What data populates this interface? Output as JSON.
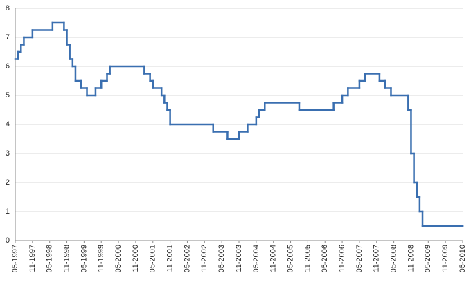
{
  "chart_data": {
    "type": "step",
    "x": [
      "05-1997",
      "06-1997",
      "07-1997",
      "08-1997",
      "11-1997",
      "06-1998",
      "10-1998",
      "11-1998",
      "12-1998",
      "01-1999",
      "02-1999",
      "04-1999",
      "06-1999",
      "09-1999",
      "11-1999",
      "01-2000",
      "02-2000",
      "02-2001",
      "04-2001",
      "05-2001",
      "08-2001",
      "09-2001",
      "10-2001",
      "11-2001",
      "02-2003",
      "07-2003",
      "11-2003",
      "02-2004",
      "05-2004",
      "06-2004",
      "08-2004",
      "08-2005",
      "08-2006",
      "11-2006",
      "01-2007",
      "05-2007",
      "07-2007",
      "12-2007",
      "02-2008",
      "04-2008",
      "10-2008",
      "11-2008",
      "12-2008",
      "01-2009",
      "02-2009",
      "03-2009",
      "05-2010"
    ],
    "values": [
      6.25,
      6.5,
      6.75,
      7,
      7.25,
      7.5,
      7.25,
      6.75,
      6.25,
      6,
      5.5,
      5.25,
      5,
      5.25,
      5.5,
      5.75,
      6,
      5.75,
      5.5,
      5.25,
      5,
      4.75,
      4.5,
      4,
      3.75,
      3.5,
      3.75,
      4,
      4.25,
      4.5,
      4.75,
      4.5,
      4.75,
      5,
      5.25,
      5.5,
      5.75,
      5.5,
      5.25,
      5,
      4.5,
      3,
      2,
      1.5,
      1,
      0.5,
      0.5
    ],
    "color": "#3a6fb0",
    "xlim": [
      "05-1997",
      "05-2010"
    ],
    "xticks": [
      "05-1997",
      "11-1997",
      "05-1998",
      "11-1998",
      "05-1999",
      "11-1999",
      "05-2000",
      "11-2000",
      "05-2001",
      "11-2001",
      "05-2002",
      "11-2002",
      "05-2003",
      "11-2003",
      "05-2004",
      "11-2004",
      "05-2005",
      "11-2005",
      "05-2006",
      "11-2006",
      "05-2007",
      "11-2007",
      "05-2008",
      "11-2008",
      "05-2009",
      "11-2009",
      "05-2010"
    ],
    "ylim": [
      0,
      8
    ],
    "yticks": [
      0,
      1,
      2,
      3,
      4,
      5,
      6,
      7,
      8
    ],
    "grid": true
  }
}
